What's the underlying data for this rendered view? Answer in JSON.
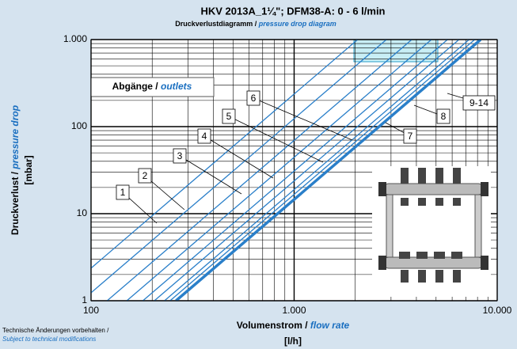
{
  "chart_data": {
    "type": "line",
    "title": "HKV 2013A_1¼\"; DFM38-A: 0 - 6 l/min",
    "subtitle": {
      "text": "Druckverlustdiagramm /",
      "text_en": "pressure drop diagram"
    },
    "y_label": {
      "text": "Druckverlust /",
      "text_en": "pressure drop",
      "unit": "[mbar]"
    },
    "x_label": {
      "text": "Volumenstrom /",
      "text_en": "flow rate",
      "unit": "[l/h]"
    },
    "legend_title": {
      "text": "Abgänge /",
      "text_en": "outlets"
    },
    "footnote": {
      "text": "Technische Änderungen vorbehalten /",
      "text_en": "Subject to technical modifications"
    },
    "log_x": true,
    "log_y": true,
    "grid": true,
    "minor_grid": true,
    "xlim": [
      100,
      10000
    ],
    "ylim": [
      1,
      1000
    ],
    "xticks": [
      100,
      {
        "value": 1000,
        "label": "1.000"
      },
      {
        "value": 10000,
        "label": "10.000"
      }
    ],
    "yticks": [
      1,
      10,
      100,
      {
        "value": 1000,
        "label": "1.000"
      }
    ],
    "series": [
      {
        "name": "1",
        "color": "#2a7fc9",
        "x": [
          65,
          2055
        ],
        "values": [
          1,
          1000
        ]
      },
      {
        "name": "2",
        "color": "#2a7fc9",
        "x": [
          90,
          2846
        ],
        "values": [
          1,
          1000
        ]
      },
      {
        "name": "3",
        "color": "#2a7fc9",
        "x": [
          120,
          3795
        ],
        "values": [
          1,
          1000
        ]
      },
      {
        "name": "4",
        "color": "#2a7fc9",
        "x": [
          150,
          4743
        ],
        "values": [
          1,
          1000
        ]
      },
      {
        "name": "5",
        "color": "#2a7fc9",
        "x": [
          180,
          5692
        ],
        "values": [
          1,
          1000
        ]
      },
      {
        "name": "6",
        "color": "#2a7fc9",
        "x": [
          205,
          6483
        ],
        "values": [
          1,
          1000
        ]
      },
      {
        "name": "7",
        "color": "#2a7fc9",
        "x": [
          230,
          7273
        ],
        "values": [
          1,
          1000
        ]
      },
      {
        "name": "8",
        "color": "#2a7fc9",
        "x": [
          245,
          7748
        ],
        "values": [
          1,
          1000
        ]
      },
      {
        "name": "9-14",
        "color": "#2a7fc9",
        "x": [
          262,
          8285
        ],
        "values": [
          1,
          1000
        ]
      }
    ]
  }
}
